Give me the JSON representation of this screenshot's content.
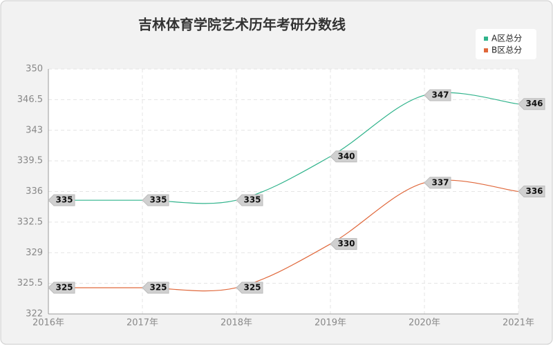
{
  "chart_data": {
    "type": "line",
    "title": "吉林体育学院艺术历年考研分数线",
    "categories": [
      "2016年",
      "2017年",
      "2018年",
      "2019年",
      "2020年",
      "2021年"
    ],
    "series": [
      {
        "name": "A区总分",
        "color": "#2fb38b",
        "values": [
          335,
          335,
          335,
          340,
          347,
          346
        ]
      },
      {
        "name": "B区总分",
        "color": "#e0673a",
        "values": [
          325,
          325,
          325,
          330,
          337,
          336
        ]
      }
    ],
    "ylim": [
      322,
      350
    ],
    "yticks": [
      322,
      325.5,
      329,
      332.5,
      336,
      339.5,
      343,
      346.5,
      350
    ],
    "grid": true,
    "legend": "top-right"
  }
}
